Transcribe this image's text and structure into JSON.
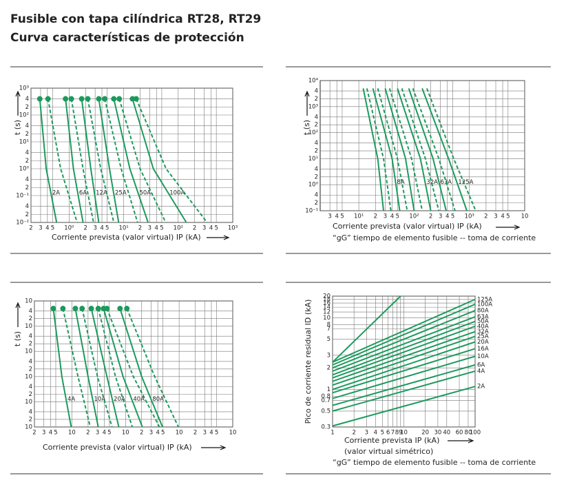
{
  "header": {
    "title": "Fusible con tapa cilíndrica RT28, RT29",
    "subtitle": "Curva características de protección"
  },
  "chart_data": [
    {
      "type": "line",
      "y_label": "t (s)",
      "x_label": "Corriente prevista (valor virtual) IP (kA)",
      "xscale": "log",
      "yscale": "log",
      "grid": true,
      "color": "#1b9a5c",
      "markers": "start",
      "label_position": "inside",
      "xlim": [
        0.2,
        1000
      ],
      "xticks": [
        {
          "value": 0.2,
          "label": "2"
        },
        {
          "value": 0.3,
          "label": "3"
        },
        {
          "value": 0.4,
          "label": "4"
        },
        {
          "value": 0.5,
          "label": "5"
        },
        {
          "value": 1,
          "label": "10⁰"
        },
        2,
        3,
        4,
        5,
        {
          "value": 10,
          "label": "10¹"
        },
        {
          "value": 20,
          "label": "2"
        },
        {
          "value": 30,
          "label": "3"
        },
        {
          "value": 40,
          "label": "4"
        },
        {
          "value": 50,
          "label": "5"
        },
        {
          "value": 100,
          "label": "10²"
        },
        {
          "value": 200,
          "label": "2"
        },
        {
          "value": 300,
          "label": "3"
        },
        {
          "value": 400,
          "label": "4"
        },
        {
          "value": 500,
          "label": "5"
        },
        {
          "value": 1000,
          "label": "10³"
        }
      ],
      "ylim": [
        0.01,
        1000
      ],
      "yticks": [
        {
          "value": 0.01,
          "label": "10⁻²"
        },
        {
          "value": 0.02,
          "label": "2"
        },
        {
          "value": 0.04,
          "label": "4"
        },
        {
          "value": 0.1,
          "label": "10⁻¹"
        },
        {
          "value": 0.2,
          "label": "2"
        },
        {
          "value": 0.4,
          "label": "4"
        },
        {
          "value": 1,
          "label": "10⁰"
        },
        2,
        4,
        {
          "value": 10,
          "label": "10¹"
        },
        {
          "value": 20,
          "label": "2"
        },
        {
          "value": 40,
          "label": "4"
        },
        {
          "value": 100,
          "label": "10²"
        },
        {
          "value": 200,
          "label": "2"
        },
        {
          "value": 400,
          "label": "4"
        },
        {
          "value": 1000,
          "label": "10³"
        }
      ],
      "series": [
        {
          "name": "2A",
          "x": [
            0.29,
            0.38,
            0.59
          ],
          "y": [
            400,
            1,
            0.01
          ]
        },
        {
          "dashed": true,
          "x": [
            0.41,
            0.7,
            1.4
          ],
          "y": [
            400,
            1,
            0.01
          ]
        },
        {
          "name": "6A",
          "x": [
            0.86,
            1.2,
            1.8
          ],
          "y": [
            400,
            1,
            0.01
          ]
        },
        {
          "dashed": true,
          "x": [
            1.1,
            1.8,
            2.8
          ],
          "y": [
            400,
            1,
            0.01
          ]
        },
        {
          "name": "12A",
          "x": [
            1.7,
            2.5,
            3.5
          ],
          "y": [
            400,
            1,
            0.01
          ]
        },
        {
          "dashed": true,
          "x": [
            2.2,
            3.8,
            6.6
          ],
          "y": [
            400,
            1,
            0.01
          ]
        },
        {
          "name": "25A",
          "x": [
            3.5,
            5.5,
            8.1
          ],
          "y": [
            400,
            1,
            0.01
          ]
        },
        {
          "dashed": true,
          "x": [
            4.5,
            9,
            18
          ],
          "y": [
            400,
            1,
            0.01
          ]
        },
        {
          "name": "50A",
          "x": [
            6.6,
            13,
            28
          ],
          "y": [
            400,
            1,
            0.01
          ]
        },
        {
          "dashed": true,
          "x": [
            8.3,
            20,
            59
          ],
          "y": [
            400,
            1,
            0.01
          ]
        },
        {
          "name": "100A",
          "x": [
            14.5,
            35,
            141
          ],
          "y": [
            400,
            1,
            0.01
          ]
        },
        {
          "dashed": true,
          "x": [
            17,
            60,
            338
          ],
          "y": [
            400,
            1,
            0.01
          ]
        }
      ]
    },
    {
      "type": "line",
      "y_label": "t (s)",
      "x_label": "Corriente prevista (valor virtual) IP (kA)",
      "note": "“gG”   tiempo de elemento fusible -- toma de corriente",
      "xscale": "log",
      "yscale": "log",
      "grid": true,
      "color": "#1b9a5c",
      "label_position": "inside",
      "xlim": [
        2,
        10000
      ],
      "xticks": [
        3,
        4,
        5,
        {
          "value": 10,
          "label": "10¹"
        },
        {
          "value": 20,
          "label": "2"
        },
        {
          "value": 30,
          "label": "3"
        },
        {
          "value": 40,
          "label": "4"
        },
        {
          "value": 50,
          "label": "5"
        },
        {
          "value": 100,
          "label": "10²"
        },
        {
          "value": 200,
          "label": "2"
        },
        {
          "value": 300,
          "label": "3"
        },
        {
          "value": 400,
          "label": "4"
        },
        {
          "value": 500,
          "label": "5"
        },
        {
          "value": 1000,
          "label": "10³"
        },
        {
          "value": 2000,
          "label": "2"
        },
        {
          "value": 3000,
          "label": "3"
        },
        {
          "value": 4000,
          "label": "4"
        },
        {
          "value": 5000,
          "label": "5"
        },
        {
          "value": 10000,
          "label": "10"
        }
      ],
      "ylim": [
        0.1,
        10000
      ],
      "yticks": [
        {
          "value": 0.1,
          "label": "10⁻¹"
        },
        {
          "value": 0.2,
          "label": "2"
        },
        {
          "value": 0.4,
          "label": "4"
        },
        {
          "value": 1,
          "label": "10⁰"
        },
        2,
        4,
        {
          "value": 10,
          "label": "10¹"
        },
        {
          "value": 20,
          "label": "2"
        },
        {
          "value": 40,
          "label": "4"
        },
        {
          "value": 100,
          "label": "10²"
        },
        {
          "value": 200,
          "label": "2"
        },
        {
          "value": 400,
          "label": "4"
        },
        {
          "value": 1000,
          "label": "10³"
        },
        {
          "value": 2000,
          "label": "2"
        },
        {
          "value": 4000,
          "label": "4"
        },
        {
          "value": 10000,
          "label": "10⁴"
        }
      ],
      "series": [
        {
          "x": [
            12,
            22,
            28
          ],
          "y": [
            5000,
            10,
            0.1
          ]
        },
        {
          "dashed": true,
          "x": [
            14,
            28,
            38
          ],
          "y": [
            5000,
            10,
            0.1
          ]
        },
        {
          "name": "8A",
          "x": [
            18,
            40,
            55
          ],
          "y": [
            5000,
            10,
            0.1
          ]
        },
        {
          "dashed": true,
          "x": [
            22,
            50,
            75
          ],
          "y": [
            5000,
            10,
            0.1
          ]
        },
        {
          "x": [
            30,
            70,
            100
          ],
          "y": [
            5000,
            10,
            0.1
          ]
        },
        {
          "dashed": true,
          "x": [
            36,
            90,
            140
          ],
          "y": [
            5000,
            10,
            0.1
          ]
        },
        {
          "name": "32A",
          "x": [
            50,
            130,
            200
          ],
          "y": [
            5000,
            10,
            0.1
          ]
        },
        {
          "dashed": true,
          "x": [
            60,
            160,
            280
          ],
          "y": [
            5000,
            10,
            0.1
          ]
        },
        {
          "name": "63A",
          "x": [
            80,
            220,
            380
          ],
          "y": [
            5000,
            10,
            0.1
          ]
        },
        {
          "dashed": true,
          "x": [
            95,
            280,
            550
          ],
          "y": [
            5000,
            10,
            0.1
          ]
        },
        {
          "name": "125A",
          "x": [
            140,
            420,
            900
          ],
          "y": [
            5000,
            10,
            0.1
          ]
        },
        {
          "dashed": true,
          "x": [
            170,
            520,
            1300
          ],
          "y": [
            5000,
            10,
            0.1
          ]
        }
      ]
    },
    {
      "type": "line",
      "y_label": "t (s)",
      "x_label": "Corriente prevista (valor virtual) IP (kA)",
      "xscale": "log",
      "yscale": "log",
      "grid": true,
      "color": "#1b9a5c",
      "markers": "start",
      "label_position": "inside",
      "xlim": [
        0.2,
        1000
      ],
      "xticks": [
        {
          "value": 0.2,
          "label": "2"
        },
        {
          "value": 0.3,
          "label": "3"
        },
        {
          "value": 0.4,
          "label": "4"
        },
        {
          "value": 0.5,
          "label": "5"
        },
        {
          "value": 1,
          "label": "10"
        },
        2,
        3,
        4,
        5,
        10,
        {
          "value": 20,
          "label": "2"
        },
        {
          "value": 30,
          "label": "3"
        },
        {
          "value": 40,
          "label": "4"
        },
        {
          "value": 50,
          "label": "5"
        },
        {
          "value": 100,
          "label": "10"
        },
        {
          "value": 200,
          "label": "2"
        },
        {
          "value": 300,
          "label": "3"
        },
        {
          "value": 400,
          "label": "4"
        },
        {
          "value": 500,
          "label": "5"
        },
        {
          "value": 1000,
          "label": "10"
        }
      ],
      "ylim": [
        0.01,
        1000
      ],
      "yticks": [
        {
          "value": 0.01,
          "label": "10"
        },
        {
          "value": 0.02,
          "label": "2"
        },
        {
          "value": 0.04,
          "label": "4"
        },
        {
          "value": 0.1,
          "label": "10"
        },
        {
          "value": 0.2,
          "label": "2"
        },
        {
          "value": 0.4,
          "label": "4"
        },
        {
          "value": 1,
          "label": "10"
        },
        2,
        4,
        10,
        {
          "value": 20,
          "label": "2"
        },
        {
          "value": 40,
          "label": "4"
        },
        {
          "value": 100,
          "label": "10"
        },
        {
          "value": 200,
          "label": "2"
        },
        {
          "value": 400,
          "label": "4"
        },
        {
          "value": 1000,
          "label": "10"
        }
      ],
      "series": [
        {
          "name": "4A",
          "x": [
            0.45,
            0.65,
            0.97
          ],
          "y": [
            500,
            1,
            0.01
          ]
        },
        {
          "dashed": true,
          "x": [
            0.68,
            1.3,
            2.2
          ],
          "y": [
            500,
            1,
            0.01
          ]
        },
        {
          "name": "10A",
          "x": [
            1.16,
            2,
            3.1
          ],
          "y": [
            500,
            1,
            0.01
          ]
        },
        {
          "dashed": true,
          "x": [
            1.55,
            3,
            5.6
          ],
          "y": [
            500,
            1,
            0.01
          ]
        },
        {
          "name": "20A",
          "x": [
            2.3,
            4.5,
            7.5
          ],
          "y": [
            500,
            1,
            0.01
          ]
        },
        {
          "dashed": true,
          "x": [
            3.1,
            6.5,
            13.4
          ],
          "y": [
            500,
            1,
            0.01
          ]
        },
        {
          "name": "40A",
          "x": [
            3.9,
            9,
            20.6
          ],
          "y": [
            500,
            1,
            0.01
          ]
        },
        {
          "dashed": true,
          "x": [
            4.5,
            14,
            43
          ],
          "y": [
            500,
            1,
            0.01
          ]
        },
        {
          "name": "80A",
          "x": [
            7.9,
            20,
            49
          ],
          "y": [
            500,
            1,
            0.01
          ]
        },
        {
          "dashed": true,
          "x": [
            10.6,
            35,
            97
          ],
          "y": [
            500,
            1,
            0.01
          ]
        }
      ]
    },
    {
      "type": "line",
      "y_label": "Pico de corriente residual ID (kA)",
      "x_label": "Corriente prevista IP (kA)",
      "x_label_2": "(valor virtual simétrico)",
      "note": "“gG”   tiempo de elemento fusible -- toma de corriente",
      "xscale": "log",
      "yscale": "log",
      "grid": true,
      "color": "#1b9a5c",
      "label_position": "end",
      "xlim": [
        1,
        100
      ],
      "xticks": [
        1,
        2,
        3,
        4,
        5,
        6,
        7,
        8,
        9,
        10,
        20,
        30,
        40,
        60,
        80,
        100
      ],
      "ylim": [
        0.3,
        20
      ],
      "yticks": [
        0.3,
        0.5,
        0.7,
        0.8,
        1,
        2,
        3,
        5,
        7,
        8,
        10,
        12,
        14,
        16,
        18,
        20
      ],
      "series": [
        {
          "x": [
            1,
            9
          ],
          "y": [
            2.4,
            20
          ]
        },
        {
          "name": "125A",
          "x": [
            1,
            100
          ],
          "y": [
            2.4,
            18
          ]
        },
        {
          "name": "100A",
          "x": [
            1,
            100
          ],
          "y": [
            2.2,
            15.4
          ]
        },
        {
          "name": "80A",
          "x": [
            1,
            100
          ],
          "y": [
            2,
            12.6
          ]
        },
        {
          "name": "63A",
          "x": [
            1,
            100
          ],
          "y": [
            1.8,
            10.3
          ]
        },
        {
          "name": "50A",
          "x": [
            1,
            100
          ],
          "y": [
            1.6,
            8.9
          ]
        },
        {
          "name": "40A",
          "x": [
            1,
            100
          ],
          "y": [
            1.45,
            7.6
          ]
        },
        {
          "name": "32A",
          "x": [
            1,
            100
          ],
          "y": [
            1.3,
            6.4
          ]
        },
        {
          "name": "25A",
          "x": [
            1,
            100
          ],
          "y": [
            1.15,
            5.5
          ]
        },
        {
          "name": "20A",
          "x": [
            1,
            100
          ],
          "y": [
            1,
            4.6
          ]
        },
        {
          "name": "16A",
          "x": [
            1,
            100
          ],
          "y": [
            0.9,
            3.7
          ]
        },
        {
          "name": "10A",
          "x": [
            1,
            100
          ],
          "y": [
            0.75,
            2.9
          ]
        },
        {
          "name": "6A",
          "x": [
            1,
            100
          ],
          "y": [
            0.6,
            2.2
          ]
        },
        {
          "name": "4A",
          "x": [
            1,
            100
          ],
          "y": [
            0.5,
            1.8
          ]
        },
        {
          "name": "2A",
          "x": [
            1,
            100
          ],
          "y": [
            0.31,
            1.1
          ]
        }
      ]
    }
  ]
}
